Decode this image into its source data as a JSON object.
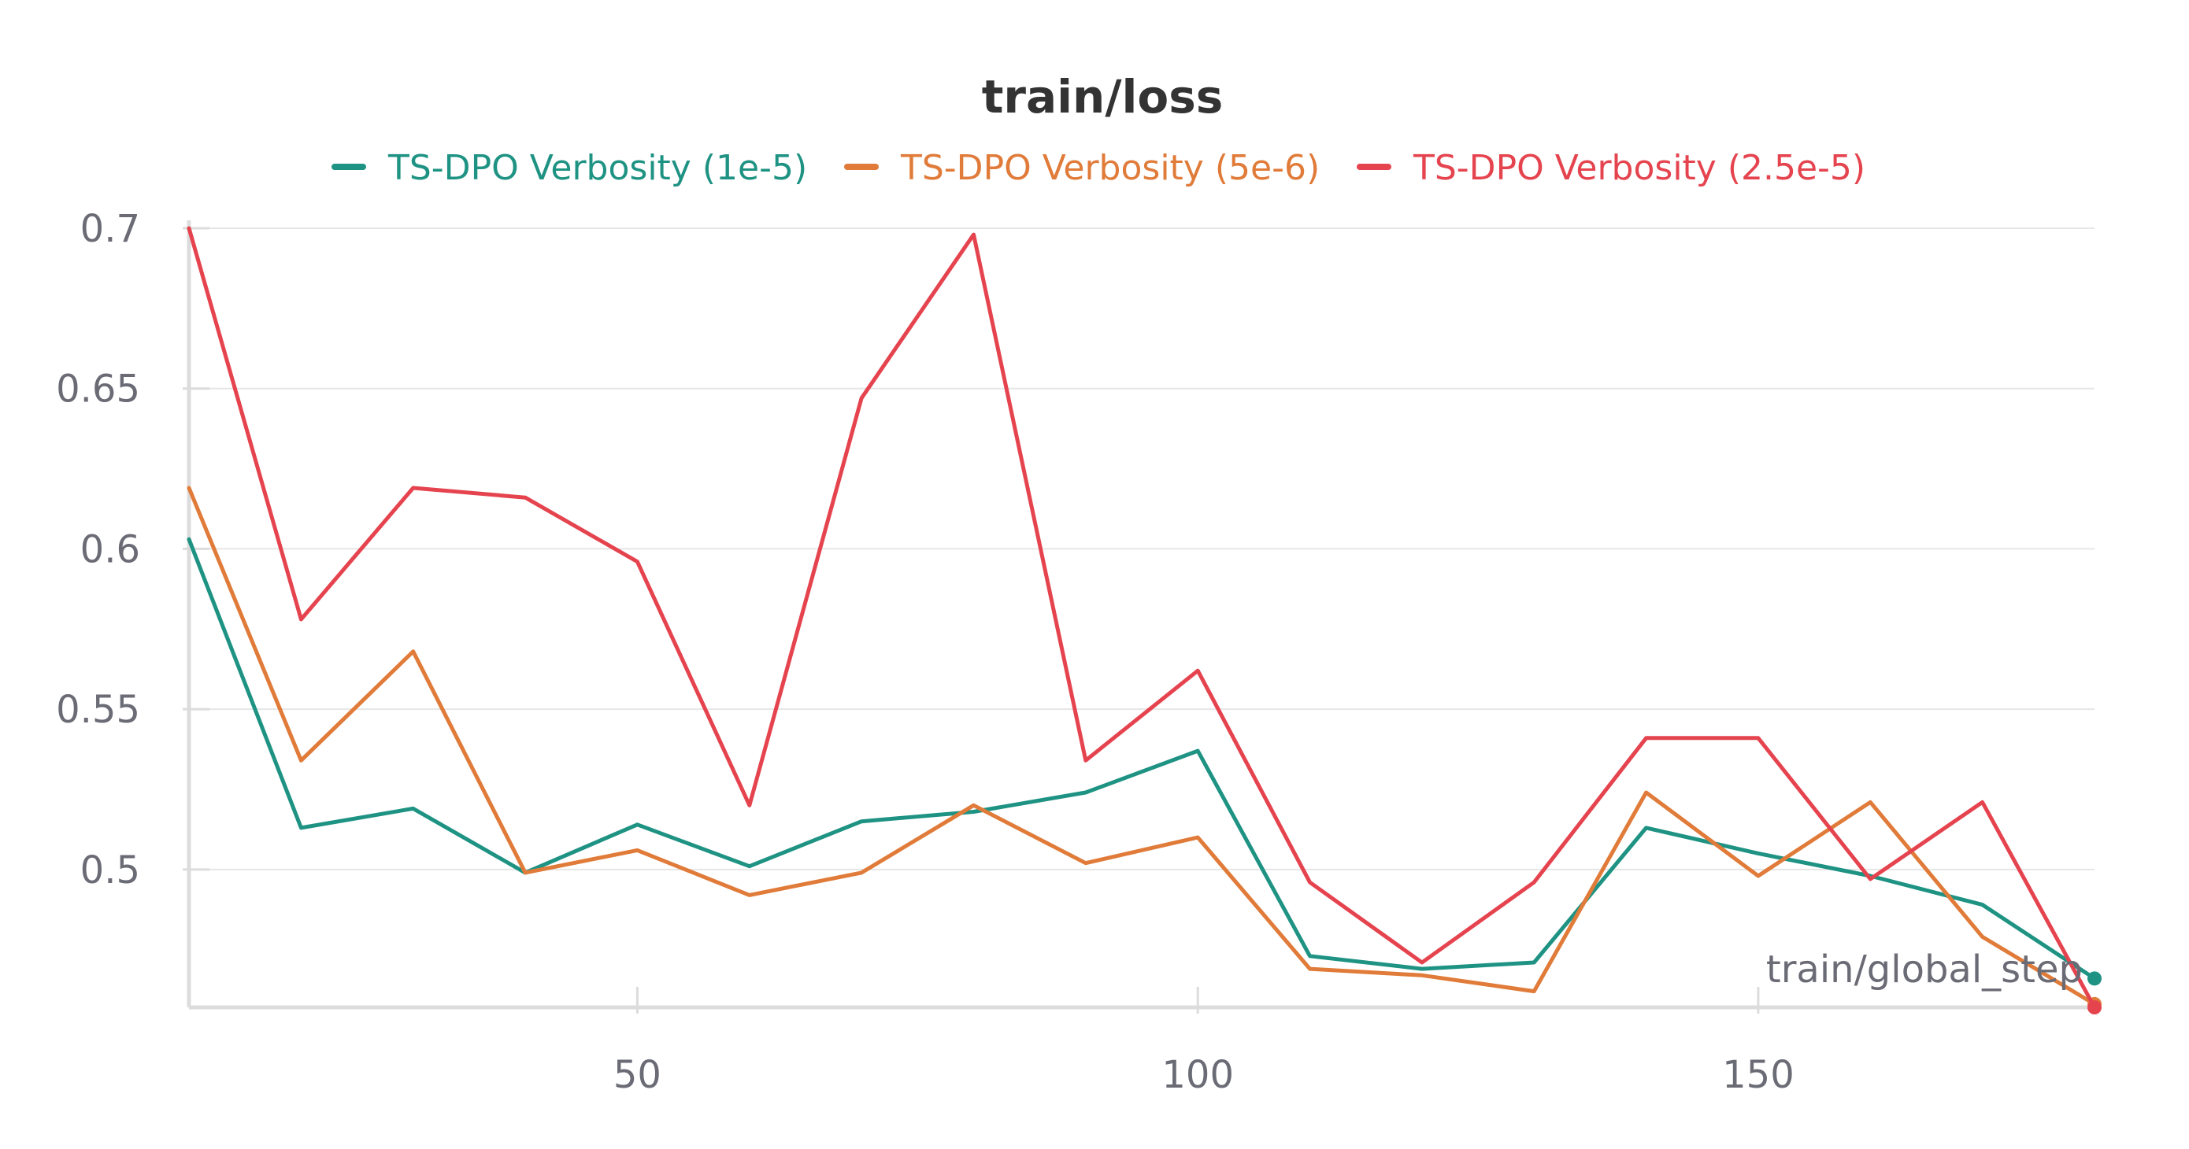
{
  "chart_data": {
    "type": "line",
    "title": "train/loss",
    "xlabel": "train/global_step",
    "ylabel": "",
    "xlim": [
      10,
      180
    ],
    "ylim": [
      0.457,
      0.7
    ],
    "xticks": [
      50,
      100,
      150
    ],
    "yticks": [
      0.5,
      0.55,
      0.6,
      0.65,
      0.7
    ],
    "grid": true,
    "legend": "top",
    "x": [
      10,
      20,
      30,
      40,
      50,
      60,
      70,
      80,
      90,
      100,
      110,
      120,
      130,
      140,
      150,
      160,
      170,
      180
    ],
    "series": [
      {
        "name": "TS-DPO Verbosity (1e-5)",
        "color": "#1f9383",
        "values": [
          0.603,
          0.513,
          0.519,
          0.499,
          0.514,
          0.501,
          0.515,
          0.518,
          0.524,
          0.537,
          0.473,
          0.469,
          0.471,
          0.513,
          0.505,
          0.498,
          0.489,
          0.466
        ]
      },
      {
        "name": "TS-DPO Verbosity (5e-6)",
        "color": "#e07b39",
        "values": [
          0.619,
          0.534,
          0.568,
          0.499,
          0.506,
          0.492,
          0.499,
          0.52,
          0.502,
          0.51,
          0.469,
          0.467,
          0.462,
          0.524,
          0.498,
          0.521,
          0.479,
          0.458
        ]
      },
      {
        "name": "TS-DPO Verbosity (2.5e-5)",
        "color": "#e5444f",
        "values": [
          0.7,
          0.578,
          0.619,
          0.616,
          0.596,
          0.52,
          0.647,
          0.698,
          0.534,
          0.562,
          0.496,
          0.471,
          0.496,
          0.541,
          0.541,
          0.497,
          0.521,
          0.457
        ]
      }
    ]
  }
}
